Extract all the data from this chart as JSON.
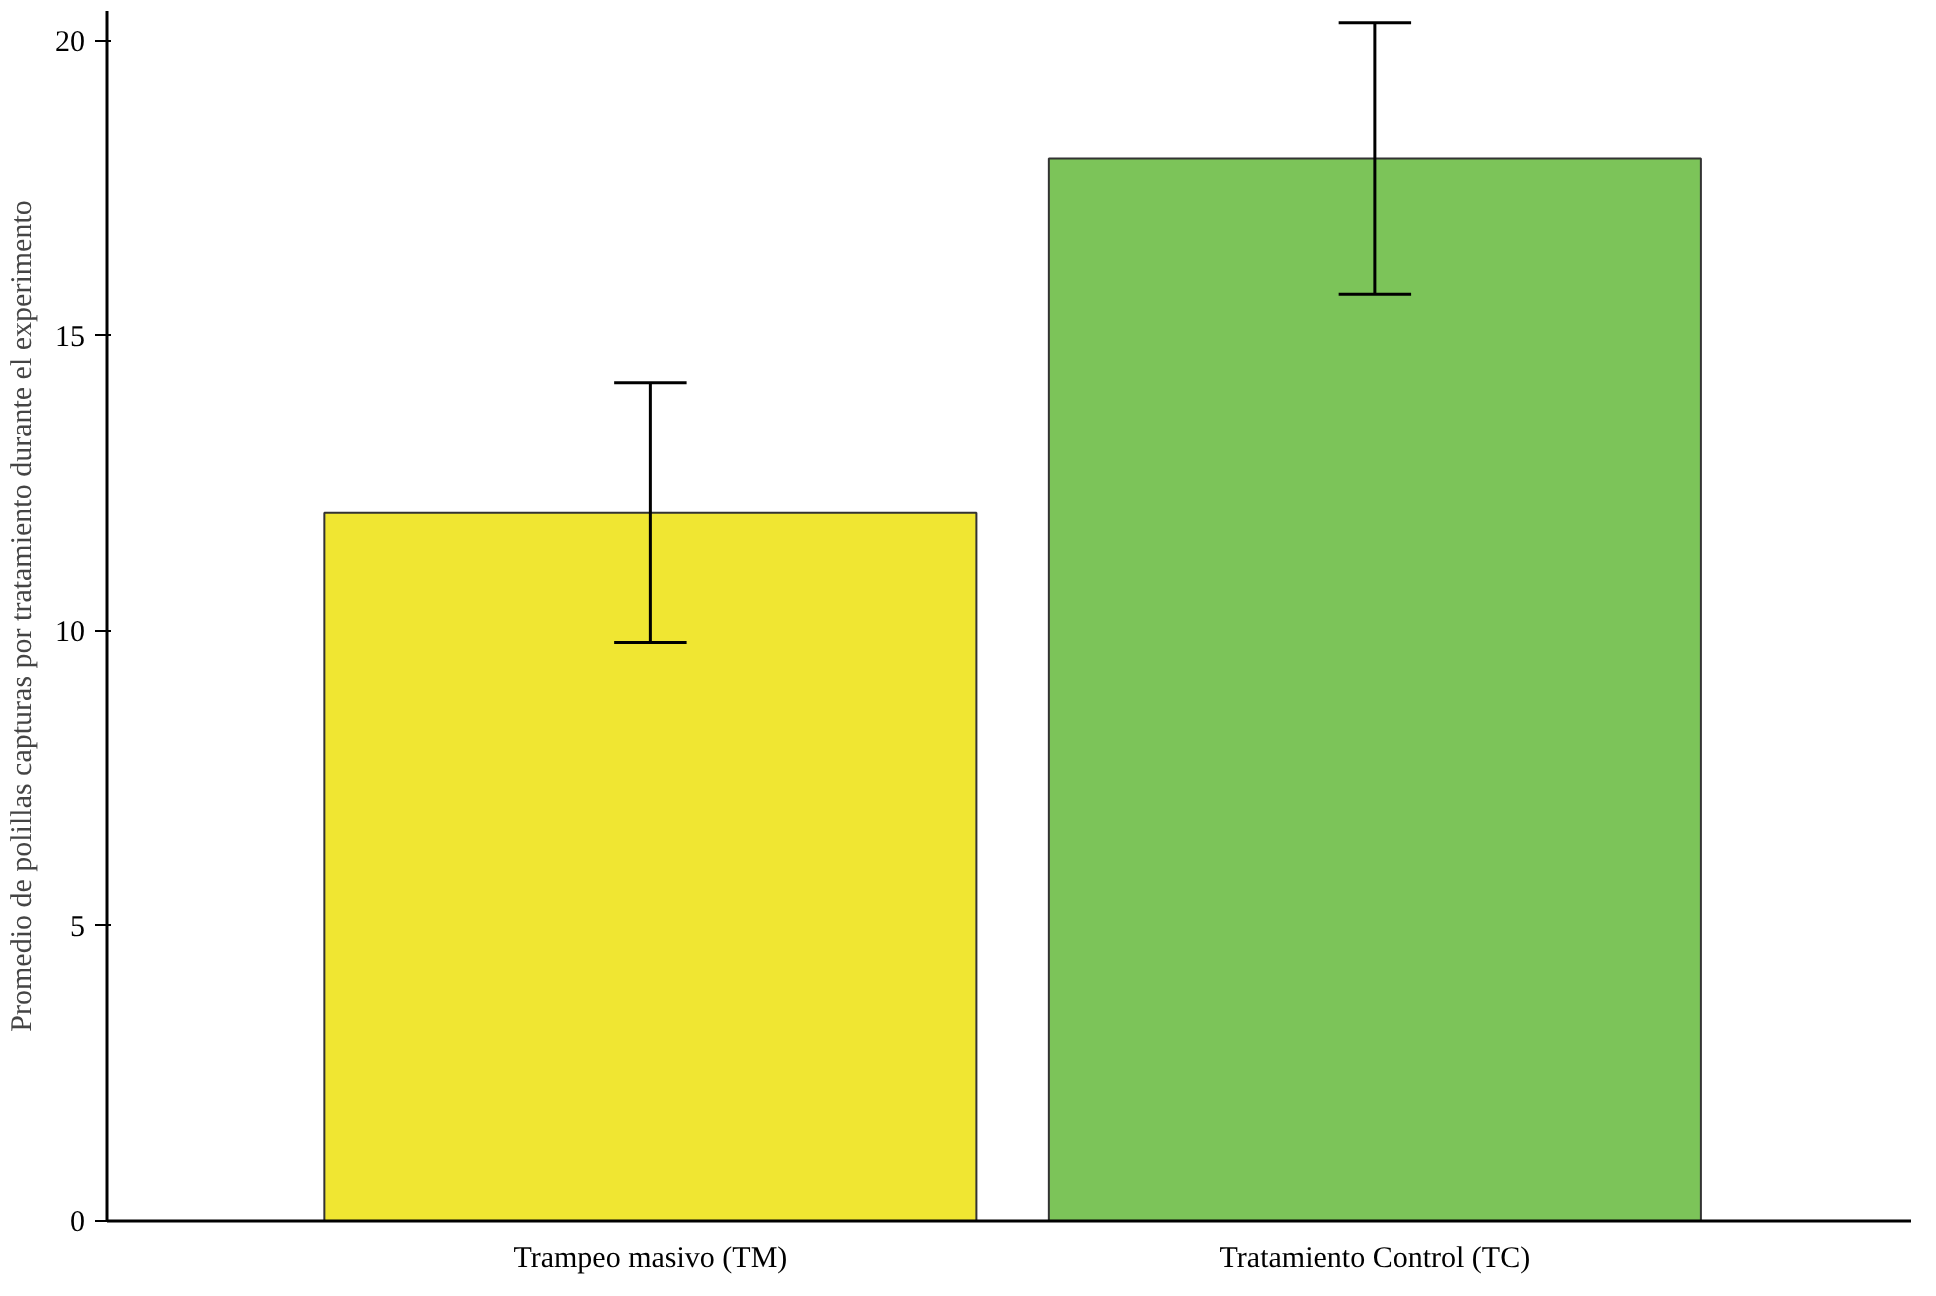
{
  "chart_data": {
    "type": "bar",
    "ylabel": "Promedio de polillas capturas por tratamiento durante el experimento",
    "categories": [
      "Trampeo masivo (TM)",
      "Tratamiento Control (TC)"
    ],
    "values": [
      12,
      18
    ],
    "colors": [
      "#f0e632",
      "#7cc459"
    ],
    "errors": [
      2.2,
      2.3
    ],
    "ylim": [
      0,
      20.5
    ],
    "yticks": [
      0,
      5,
      10,
      15,
      20
    ],
    "grid": false
  }
}
